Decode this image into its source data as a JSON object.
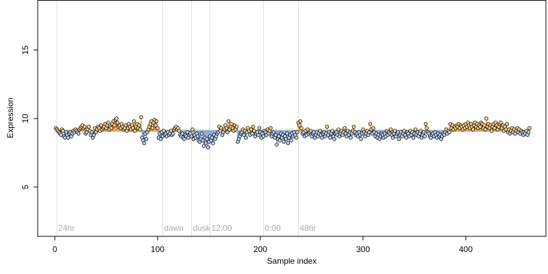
{
  "chart_data": {
    "type": "scatter",
    "xlabel": "Sample index",
    "ylabel": "Expression",
    "xlim": [
      -16.7,
      478
    ],
    "ylim": [
      1.4,
      18.65
    ],
    "xticks": [
      0,
      100,
      200,
      300,
      400
    ],
    "yticks": [
      5,
      10,
      15
    ],
    "baseline": 9.1,
    "colors": {
      "above": "#f0a030",
      "below": "#7fa6dc",
      "above_fill": "#ffd28c",
      "below_fill": "#bcd4f2",
      "baseline": "#a9b8cc"
    },
    "events": [
      {
        "value": 2,
        "label": "24hr"
      },
      {
        "value": 105,
        "label": "dawn"
      },
      {
        "value": 133,
        "label": "dusk"
      },
      {
        "value": 151,
        "label": "12:00"
      },
      {
        "value": 203,
        "label": "0:00"
      },
      {
        "value": 237,
        "label": "48hr"
      }
    ],
    "values": [
      9.3,
      9.2,
      9.1,
      9.0,
      8.9,
      8.8,
      9.2,
      9.1,
      8.7,
      8.6,
      9.0,
      8.8,
      8.6,
      8.9,
      9.0,
      8.7,
      8.9,
      9.1,
      9.0,
      9.2,
      9.1,
      9.0,
      8.9,
      9.2,
      9.3,
      9.4,
      9.5,
      9.3,
      9.4,
      8.9,
      9.0,
      9.2,
      9.4,
      9.1,
      8.8,
      9.0,
      8.6,
      8.8,
      9.3,
      9.0,
      9.2,
      9.4,
      9.3,
      9.1,
      9.5,
      9.2,
      9.3,
      9.4,
      9.6,
      9.3,
      9.5,
      9.7,
      9.2,
      9.4,
      9.3,
      9.6,
      9.8,
      9.5,
      9.9,
      10.0,
      9.7,
      9.4,
      9.5,
      9.3,
      9.6,
      9.4,
      9.2,
      9.3,
      9.5,
      9.1,
      9.3,
      9.6,
      9.4,
      9.2,
      9.5,
      9.3,
      9.8,
      9.1,
      9.4,
      9.6,
      9.3,
      9.5,
      9.2,
      10.1,
      8.6,
      8.4,
      8.2,
      8.9,
      8.5,
      9.0,
      9.2,
      9.4,
      9.6,
      9.8,
      9.3,
      9.7,
      9.9,
      9.5,
      9.8,
      9.3,
      8.6,
      8.9,
      8.5,
      9.0,
      8.7,
      9.1,
      8.8,
      8.9,
      8.7,
      9.0,
      8.8,
      8.9,
      9.1,
      8.8,
      8.9,
      9.2,
      9.3,
      9.4,
      9.2,
      9.3,
      9.1,
      8.8,
      8.7,
      8.9,
      8.6,
      8.5,
      8.8,
      8.7,
      9.0,
      8.6,
      8.8,
      8.9,
      8.7,
      9.2,
      8.5,
      8.8,
      8.6,
      8.9,
      8.7,
      8.4,
      8.3,
      8.5,
      8.9,
      8.4,
      8.0,
      8.6,
      8.2,
      8.5,
      7.9,
      8.3,
      8.7,
      8.4,
      8.6,
      8.2,
      8.8,
      8.5,
      8.7,
      8.9,
      9.0,
      9.4,
      9.1,
      9.3,
      8.8,
      9.0,
      9.2,
      9.5,
      9.3,
      9.0,
      9.8,
      9.2,
      9.4,
      9.6,
      9.3,
      9.1,
      9.5,
      9.2,
      9.4,
      8.3,
      8.5,
      8.7,
      8.9,
      9.0,
      9.2,
      8.8,
      9.1,
      8.6,
      9.0,
      9.3,
      9.1,
      8.8,
      9.2,
      8.9,
      9.4,
      9.1,
      8.7,
      8.9,
      9.0,
      8.8,
      9.3,
      9.0,
      8.6,
      8.9,
      8.7,
      9.1,
      9.0,
      8.8,
      9.2,
      8.9,
      9.1,
      9.3,
      8.7,
      8.9,
      9.0,
      8.6,
      8.8,
      8.1,
      8.5,
      8.7,
      8.4,
      8.9,
      8.6,
      8.8,
      8.3,
      8.7,
      8.5,
      8.9,
      8.2,
      8.6,
      8.8,
      8.4,
      8.9,
      8.7,
      9.0,
      8.8,
      8.6,
      9.0,
      9.7,
      9.5,
      9.8,
      9.3,
      8.9,
      9.0,
      8.7,
      9.1,
      8.8,
      9.2,
      8.9,
      9.0,
      9.1,
      8.7,
      8.9,
      9.0,
      8.6,
      8.8,
      9.0,
      8.7,
      8.9,
      9.1,
      8.8,
      8.6,
      8.9,
      9.0,
      8.7,
      8.9,
      9.4,
      8.8,
      9.0,
      8.6,
      8.9,
      9.1,
      8.7,
      8.5,
      8.9,
      9.0,
      8.8,
      9.2,
      8.7,
      8.9,
      9.1,
      8.8,
      9.0,
      9.3,
      8.9,
      8.7,
      9.1,
      8.8,
      9.0,
      8.6,
      8.9,
      9.1,
      9.4,
      9.0,
      8.8,
      8.9,
      8.7,
      9.0,
      8.8,
      8.5,
      8.9,
      9.2,
      9.0,
      8.7,
      8.9,
      9.1,
      8.8,
      9.0,
      9.6,
      9.2,
      8.9,
      9.3,
      9.0,
      8.7,
      8.9,
      8.6,
      8.8,
      8.5,
      8.7,
      8.9,
      8.8,
      8.6,
      8.9,
      8.7,
      9.1,
      8.8,
      9.0,
      8.9,
      9.2,
      8.8,
      8.6,
      8.9,
      9.1,
      8.7,
      8.9,
      9.0,
      8.5,
      8.8,
      9.0,
      8.7,
      8.9,
      9.1,
      8.8,
      8.6,
      9.0,
      8.9,
      8.7,
      9.1,
      8.8,
      9.0,
      8.6,
      8.9,
      9.2,
      8.8,
      9.0,
      8.7,
      8.9,
      9.1,
      8.6,
      8.8,
      9.0,
      8.7,
      9.6,
      9.3,
      9.0,
      8.9,
      8.7,
      8.6,
      8.8,
      8.9,
      8.7,
      9.0,
      8.8,
      8.6,
      8.9,
      8.7,
      8.8,
      8.5,
      8.7,
      8.9,
      8.8,
      9.0,
      9.2,
      8.9,
      9.1,
      9.0,
      9.6,
      9.3,
      9.5,
      9.2,
      9.4,
      9.3,
      9.5,
      9.4,
      9.6,
      9.3,
      9.5,
      9.4,
      9.2,
      9.5,
      9.3,
      9.6,
      9.4,
      9.7,
      9.5,
      9.3,
      9.6,
      9.4,
      9.2,
      9.5,
      9.7,
      9.4,
      9.6,
      9.3,
      9.5,
      9.4,
      9.7,
      9.6,
      9.3,
      9.5,
      9.2,
      10.0,
      9.4,
      9.6,
      9.3,
      9.5,
      9.1,
      9.4,
      9.6,
      9.3,
      9.7,
      9.5,
      9.2,
      9.4,
      9.6,
      9.7,
      9.3,
      9.5,
      9.1,
      9.4,
      9.2,
      9.6,
      9.0,
      9.2,
      8.9,
      9.1,
      9.3,
      9.0,
      9.2,
      8.9,
      9.1,
      9.3,
      9.0,
      9.2,
      8.9,
      9.1,
      9.0,
      8.8,
      9.0,
      8.9,
      9.1,
      8.8,
      9.0,
      9.3
    ]
  }
}
